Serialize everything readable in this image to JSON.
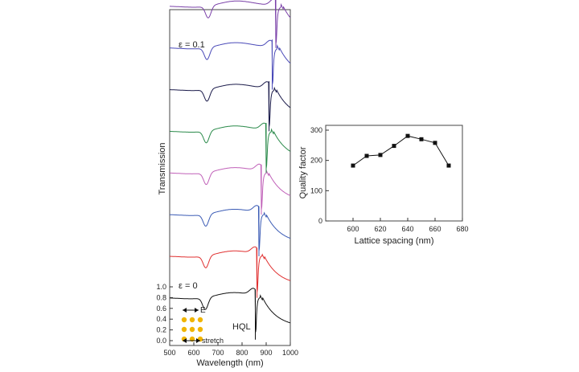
{
  "chart_data": [
    {
      "type": "line",
      "xlabel": "Wavelength (nm)",
      "ylabel": "Transmission",
      "xlim": [
        500,
        1000
      ],
      "xticks": [
        500,
        600,
        700,
        800,
        900,
        1000
      ],
      "yticks": [
        0.0,
        0.2,
        0.4,
        0.6,
        0.8,
        1.0
      ],
      "yticks_labels": [
        "0.0",
        "0.2",
        "0.4",
        "0.6",
        "0.8",
        "1.0"
      ],
      "stacked_offset": 1.0,
      "annotations": {
        "eps_top": "ε = 0.1",
        "eps_bottom": "ε = 0",
        "hql": "HQL",
        "field": "E",
        "stretch": "stretch"
      },
      "series": [
        {
          "color": "#111111",
          "dip_nm": 648,
          "resonance_nm": 855
        },
        {
          "color": "#e03030",
          "dip_nm": 650,
          "resonance_nm": 862
        },
        {
          "color": "#3b5bb5",
          "dip_nm": 650,
          "resonance_nm": 870
        },
        {
          "color": "#c060b8",
          "dip_nm": 652,
          "resonance_nm": 880
        },
        {
          "color": "#2a8a4a",
          "dip_nm": 652,
          "resonance_nm": 900
        },
        {
          "color": "#1a1a4a",
          "dip_nm": 655,
          "resonance_nm": 912
        },
        {
          "color": "#4a4ab8",
          "dip_nm": 655,
          "resonance_nm": 925
        },
        {
          "color": "#7a40a8",
          "dip_nm": 660,
          "resonance_nm": 940
        }
      ]
    },
    {
      "type": "line",
      "xlabel": "Lattice spacing (nm)",
      "ylabel": "Quality factor",
      "xlim": [
        580,
        680
      ],
      "ylim": [
        0,
        300
      ],
      "xticks": [
        600,
        620,
        640,
        660,
        680
      ],
      "yticks": [
        0,
        100,
        200,
        300
      ],
      "x": [
        600,
        610,
        620,
        630,
        640,
        650,
        660,
        670
      ],
      "y": [
        183,
        215,
        218,
        248,
        281,
        270,
        258,
        183
      ]
    }
  ]
}
